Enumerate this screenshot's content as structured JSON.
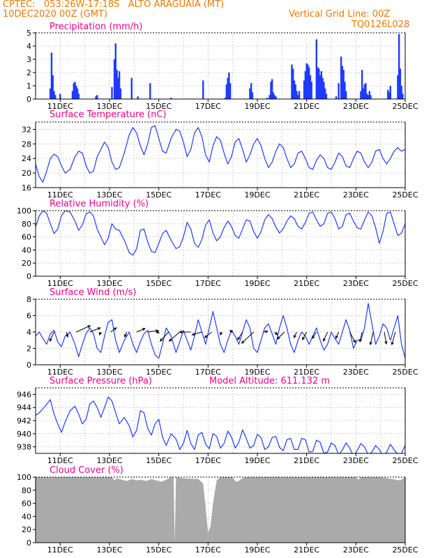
{
  "header": {
    "line1": "CPTEC:   053:26W-17:18S   ALTO ARAGUAIA (MT)",
    "line2": "10DEC2020 00Z (GMT)",
    "grid_note": "Vertical Grid Line: 00Z",
    "code": "TQ0126L028",
    "color": "#f07800"
  },
  "colors": {
    "title": "#ee0090",
    "series": "#1f3bff",
    "cloud": "#aaaaaa",
    "grid": "#999999"
  },
  "x_ticks": [
    "11DEC",
    "13DEC",
    "15DEC",
    "17DEC",
    "19DEC",
    "21DEC",
    "23DEC",
    "25DEC"
  ],
  "chart_data": [
    {
      "type": "bar",
      "title": "Precipitation (mm/h)",
      "xlim_days": [
        10.0,
        25.0
      ],
      "ylim": [
        0,
        5
      ],
      "yticks": [
        0,
        1,
        2,
        3,
        4,
        5
      ],
      "grid": true,
      "x_days": [
        10.6,
        10.65,
        10.7,
        10.75,
        10.8,
        11.0,
        11.5,
        11.55,
        11.6,
        11.65,
        11.7,
        11.75,
        12.45,
        12.5,
        13.1,
        13.2,
        13.25,
        13.3,
        13.35,
        13.4,
        13.45,
        13.9,
        14.15,
        14.65,
        15.5,
        16.8,
        17.7,
        17.75,
        17.8,
        17.85,
        17.9,
        18.7,
        18.75,
        18.8,
        19.4,
        19.5,
        19.55,
        19.6,
        19.65,
        19.7,
        19.75,
        20.4,
        20.45,
        20.5,
        20.55,
        20.6,
        20.65,
        20.7,
        20.9,
        20.95,
        21.0,
        21.05,
        21.1,
        21.15,
        21.2,
        21.4,
        21.45,
        21.5,
        21.55,
        21.6,
        21.65,
        21.7,
        21.75,
        21.8,
        22.2,
        22.3,
        22.4,
        22.45,
        22.5,
        22.55,
        22.6,
        23.2,
        23.25,
        23.3,
        23.35,
        23.4,
        23.45,
        23.5,
        23.55,
        23.6,
        24.3,
        24.35,
        24.4,
        24.7,
        24.75,
        24.8,
        24.85,
        24.9
      ],
      "values": [
        0.8,
        3.5,
        1.8,
        0.6,
        0.3,
        0.4,
        0.6,
        1.2,
        1.3,
        1.0,
        0.8,
        0.4,
        0.2,
        0.3,
        0.9,
        3.0,
        4.2,
        2.2,
        1.6,
        2.1,
        0.8,
        1.6,
        0.2,
        1.2,
        0.1,
        1.4,
        0.1,
        1.1,
        1.6,
        2.0,
        1.2,
        0.8,
        1.2,
        0.5,
        0.1,
        0.3,
        1.3,
        1.5,
        0.5,
        0.3,
        0.2,
        2.6,
        2.3,
        1.4,
        1.1,
        0.6,
        0.3,
        0.6,
        1.4,
        2.1,
        2.7,
        2.6,
        2.4,
        1.8,
        1.3,
        4.5,
        2.4,
        2.3,
        1.8,
        2.1,
        1.6,
        1.3,
        0.8,
        0.4,
        0.2,
        1.2,
        3.2,
        2.5,
        2.2,
        1.3,
        0.6,
        0.6,
        2.2,
        0.8,
        1.1,
        1.2,
        0.4,
        0.3,
        0.6,
        0.3,
        0.7,
        0.5,
        1.0,
        1.8,
        4.9,
        2.3,
        1.0,
        0.4
      ]
    },
    {
      "type": "line",
      "title": "Surface Temperature (nC)",
      "xlim_days": [
        10.0,
        25.0
      ],
      "ylim": [
        16,
        34
      ],
      "yticks": [
        16,
        20,
        24,
        28,
        32
      ],
      "grid": true,
      "x_days": [
        10.0,
        10.15,
        10.3,
        10.45,
        10.6,
        10.75,
        10.9,
        11.05,
        11.2,
        11.4,
        11.6,
        11.75,
        11.9,
        12.05,
        12.2,
        12.35,
        12.5,
        12.65,
        12.8,
        12.95,
        13.1,
        13.25,
        13.4,
        13.6,
        13.8,
        13.95,
        14.1,
        14.25,
        14.4,
        14.55,
        14.7,
        14.85,
        15.0,
        15.15,
        15.3,
        15.5,
        15.7,
        15.85,
        16.0,
        16.15,
        16.3,
        16.45,
        16.6,
        16.75,
        16.9,
        17.05,
        17.2,
        17.35,
        17.5,
        17.65,
        17.8,
        17.95,
        18.1,
        18.25,
        18.4,
        18.55,
        18.7,
        18.85,
        19.0,
        19.15,
        19.3,
        19.45,
        19.6,
        19.75,
        19.9,
        20.05,
        20.2,
        20.35,
        20.5,
        20.65,
        20.8,
        20.95,
        21.1,
        21.25,
        21.4,
        21.55,
        21.7,
        21.85,
        22.0,
        22.15,
        22.3,
        22.45,
        22.6,
        22.75,
        22.9,
        23.05,
        23.2,
        23.35,
        23.5,
        23.65,
        23.8,
        23.95,
        24.1,
        24.25,
        24.4,
        24.55,
        24.7,
        24.85,
        25.0
      ],
      "values": [
        22.5,
        19.0,
        17.5,
        20.5,
        24.0,
        25.2,
        24.5,
        22.0,
        20.0,
        21.0,
        24.5,
        26.0,
        25.5,
        22.0,
        20.0,
        20.5,
        24.5,
        26.5,
        28.5,
        27.0,
        23.0,
        21.0,
        21.5,
        25.5,
        30.5,
        32.5,
        31.0,
        27.5,
        25.0,
        28.0,
        32.5,
        33.0,
        29.5,
        26.0,
        25.5,
        29.5,
        32.0,
        31.5,
        28.5,
        24.5,
        26.5,
        31.0,
        32.5,
        30.0,
        25.0,
        23.0,
        27.5,
        30.0,
        29.0,
        25.5,
        22.5,
        24.5,
        28.5,
        29.5,
        26.5,
        23.0,
        25.0,
        28.0,
        29.5,
        27.5,
        24.0,
        21.5,
        23.0,
        26.0,
        28.0,
        27.0,
        24.0,
        21.5,
        22.5,
        25.5,
        26.0,
        24.0,
        21.5,
        21.0,
        23.5,
        25.0,
        24.0,
        21.5,
        21.0,
        23.0,
        25.5,
        24.5,
        22.0,
        21.5,
        24.0,
        26.0,
        25.5,
        23.0,
        21.5,
        23.0,
        26.0,
        26.5,
        24.0,
        22.5,
        24.0,
        26.0,
        27.0,
        26.0,
        26.5
      ]
    },
    {
      "type": "line",
      "title": "Relative Humidity (%)",
      "xlim_days": [
        10.0,
        25.0
      ],
      "ylim": [
        0,
        100
      ],
      "yticks": [
        0,
        20,
        40,
        60,
        80,
        100
      ],
      "grid": true,
      "x_days": [
        10.0,
        10.15,
        10.3,
        10.45,
        10.6,
        10.75,
        10.9,
        11.05,
        11.2,
        11.4,
        11.6,
        11.75,
        11.9,
        12.05,
        12.2,
        12.35,
        12.5,
        12.65,
        12.8,
        12.95,
        13.1,
        13.25,
        13.4,
        13.6,
        13.8,
        13.95,
        14.1,
        14.25,
        14.4,
        14.55,
        14.7,
        14.85,
        15.0,
        15.15,
        15.3,
        15.5,
        15.7,
        15.85,
        16.0,
        16.15,
        16.3,
        16.45,
        16.6,
        16.75,
        16.9,
        17.05,
        17.2,
        17.35,
        17.5,
        17.65,
        17.8,
        17.95,
        18.1,
        18.25,
        18.4,
        18.55,
        18.7,
        18.85,
        19.0,
        19.15,
        19.3,
        19.45,
        19.6,
        19.75,
        19.9,
        20.05,
        20.2,
        20.35,
        20.5,
        20.65,
        20.8,
        20.95,
        21.1,
        21.25,
        21.4,
        21.55,
        21.7,
        21.85,
        22.0,
        22.15,
        22.3,
        22.45,
        22.6,
        22.75,
        22.9,
        23.05,
        23.2,
        23.35,
        23.5,
        23.65,
        23.8,
        23.95,
        24.1,
        24.25,
        24.4,
        24.55,
        24.7,
        24.85,
        25.0
      ],
      "values": [
        75,
        92,
        100,
        96,
        80,
        65,
        72,
        92,
        100,
        98,
        84,
        70,
        78,
        95,
        98,
        92,
        72,
        60,
        48,
        58,
        80,
        72,
        70,
        55,
        36,
        32,
        42,
        70,
        72,
        52,
        38,
        36,
        50,
        65,
        70,
        55,
        42,
        45,
        60,
        82,
        72,
        50,
        44,
        56,
        78,
        86,
        66,
        54,
        60,
        74,
        84,
        76,
        62,
        58,
        72,
        86,
        84,
        68,
        58,
        68,
        86,
        94,
        88,
        75,
        66,
        72,
        84,
        92,
        88,
        76,
        72,
        82,
        96,
        98,
        86,
        76,
        80,
        96,
        98,
        88,
        72,
        76,
        94,
        96,
        84,
        74,
        72,
        86,
        98,
        92,
        74,
        50,
        68,
        96,
        98,
        80,
        62,
        66,
        80
      ]
    },
    {
      "type": "line",
      "title": "Surface Wind (m/s)",
      "xlim_days": [
        10.0,
        25.0
      ],
      "ylim": [
        0,
        8
      ],
      "yticks": [
        0,
        2,
        4,
        6,
        8
      ],
      "grid": true,
      "x_days": [
        10.0,
        10.15,
        10.3,
        10.45,
        10.6,
        10.75,
        10.9,
        11.05,
        11.2,
        11.4,
        11.6,
        11.75,
        11.9,
        12.05,
        12.2,
        12.35,
        12.5,
        12.65,
        12.8,
        12.95,
        13.1,
        13.25,
        13.4,
        13.6,
        13.8,
        13.95,
        14.1,
        14.25,
        14.4,
        14.55,
        14.7,
        14.85,
        15.0,
        15.15,
        15.3,
        15.5,
        15.7,
        15.85,
        16.0,
        16.15,
        16.3,
        16.45,
        16.6,
        16.75,
        16.9,
        17.05,
        17.2,
        17.35,
        17.5,
        17.65,
        17.8,
        17.95,
        18.1,
        18.25,
        18.4,
        18.55,
        18.7,
        18.85,
        19.0,
        19.15,
        19.3,
        19.45,
        19.6,
        19.75,
        19.9,
        20.05,
        20.2,
        20.35,
        20.5,
        20.65,
        20.8,
        20.95,
        21.1,
        21.25,
        21.4,
        21.55,
        21.7,
        21.85,
        22.0,
        22.15,
        22.3,
        22.45,
        22.6,
        22.75,
        22.9,
        23.05,
        23.2,
        23.35,
        23.5,
        23.65,
        23.8,
        23.95,
        24.1,
        24.25,
        24.4,
        24.55,
        24.7,
        24.85,
        25.0
      ],
      "values": [
        3.5,
        4.0,
        3.2,
        2.5,
        3.8,
        4.2,
        2.8,
        2.2,
        3.5,
        4.0,
        2.5,
        1.0,
        2.5,
        3.8,
        4.5,
        3.8,
        2.0,
        1.5,
        3.5,
        5.2,
        5.5,
        3.0,
        1.5,
        3.0,
        4.0,
        2.5,
        1.5,
        2.8,
        3.8,
        4.2,
        2.5,
        1.2,
        0.8,
        2.5,
        4.5,
        3.5,
        1.5,
        2.8,
        4.2,
        3.0,
        1.8,
        3.5,
        5.5,
        4.0,
        2.5,
        4.5,
        6.5,
        4.5,
        2.5,
        1.5,
        3.0,
        4.2,
        3.5,
        2.5,
        4.0,
        5.5,
        4.5,
        2.0,
        1.5,
        3.0,
        4.5,
        5.0,
        3.8,
        2.5,
        4.5,
        6.0,
        4.5,
        2.5,
        1.5,
        3.0,
        4.0,
        3.5,
        2.5,
        3.5,
        4.5,
        3.0,
        1.8,
        2.5,
        4.0,
        3.2,
        2.5,
        4.0,
        5.5,
        4.2,
        2.0,
        3.0,
        3.0,
        4.5,
        7.5,
        5.0,
        2.5,
        3.5,
        5.0,
        4.5,
        3.0,
        4.5,
        6.0,
        2.5,
        0.8
      ]
    },
    {
      "type": "line",
      "title": "Surface Pressure (hPa)",
      "annotation": "Model Altitude: 611.132  m",
      "xlim_days": [
        10.0,
        25.0
      ],
      "ylim": [
        937,
        947
      ],
      "yticks": [
        938,
        940,
        942,
        944,
        946
      ],
      "grid": true,
      "x_days": [
        10.0,
        10.15,
        10.3,
        10.45,
        10.6,
        10.75,
        10.9,
        11.05,
        11.2,
        11.4,
        11.6,
        11.75,
        11.9,
        12.05,
        12.2,
        12.35,
        12.5,
        12.65,
        12.8,
        12.95,
        13.1,
        13.25,
        13.4,
        13.6,
        13.8,
        13.95,
        14.1,
        14.25,
        14.4,
        14.55,
        14.7,
        14.85,
        15.0,
        15.15,
        15.3,
        15.5,
        15.7,
        15.85,
        16.0,
        16.15,
        16.3,
        16.45,
        16.6,
        16.75,
        16.9,
        17.05,
        17.2,
        17.35,
        17.5,
        17.65,
        17.8,
        17.95,
        18.1,
        18.25,
        18.4,
        18.55,
        18.7,
        18.85,
        19.0,
        19.15,
        19.3,
        19.45,
        19.6,
        19.75,
        19.9,
        20.05,
        20.2,
        20.35,
        20.5,
        20.65,
        20.8,
        20.95,
        21.1,
        21.25,
        21.4,
        21.55,
        21.7,
        21.85,
        22.0,
        22.15,
        22.3,
        22.45,
        22.6,
        22.75,
        22.9,
        23.05,
        23.2,
        23.35,
        23.5,
        23.65,
        23.8,
        23.95,
        24.1,
        24.25,
        24.4,
        24.55,
        24.7,
        24.85,
        25.0
      ],
      "values": [
        942.8,
        943.2,
        943.8,
        944.5,
        945.2,
        943.0,
        941.5,
        940.2,
        941.8,
        943.5,
        944.2,
        943.0,
        941.5,
        942.2,
        944.5,
        945.0,
        944.0,
        942.5,
        944.0,
        945.6,
        945.0,
        943.2,
        941.5,
        942.5,
        941.2,
        939.5,
        940.5,
        943.5,
        943.2,
        940.8,
        939.8,
        941.5,
        942.2,
        939.5,
        938.2,
        940.0,
        939.2,
        937.6,
        938.5,
        940.5,
        938.5,
        937.6,
        939.8,
        940.2,
        938.4,
        937.7,
        940.0,
        939.6,
        937.8,
        938.5,
        940.4,
        939.5,
        937.8,
        938.7,
        940.6,
        939.3,
        937.8,
        938.2,
        939.9,
        939.4,
        937.6,
        938.0,
        939.4,
        939.6,
        937.9,
        937.4,
        939.1,
        939.3,
        937.6,
        937.6,
        939.3,
        939.1,
        937.2,
        937.3,
        939.0,
        938.7,
        937.0,
        937.2,
        938.6,
        938.2,
        936.8,
        937.5,
        938.6,
        937.8,
        936.6,
        937.4,
        938.5,
        938.0,
        936.8,
        937.2,
        938.2,
        937.6,
        936.6,
        937.2,
        938.4,
        937.5,
        936.9,
        937.0,
        938.2
      ]
    },
    {
      "type": "area",
      "title": "Cloud Cover (%)",
      "xlim_days": [
        10.0,
        25.0
      ],
      "ylim": [
        0,
        100
      ],
      "yticks": [
        0,
        20,
        40,
        60,
        80,
        100
      ],
      "grid": true,
      "x_days": [
        10.0,
        12.5,
        13.1,
        13.2,
        13.3,
        13.5,
        13.7,
        13.9,
        14.1,
        14.3,
        14.5,
        14.7,
        14.9,
        15.1,
        15.3,
        15.5,
        15.6,
        15.65,
        15.7,
        16.0,
        16.6,
        16.8,
        16.9,
        17.0,
        17.1,
        17.2,
        17.35,
        17.5,
        17.8,
        18.0,
        18.1,
        18.2,
        18.3,
        18.5,
        19.0,
        20.0,
        22.0,
        23.0,
        23.1,
        23.2,
        23.3,
        24.0,
        24.8,
        25.0
      ],
      "values": [
        100,
        100,
        100,
        95,
        98,
        96,
        94,
        97,
        95,
        96,
        94,
        97,
        95,
        93,
        96,
        100,
        100,
        0,
        100,
        98,
        97,
        90,
        55,
        15,
        25,
        60,
        95,
        100,
        100,
        100,
        94,
        93,
        96,
        100,
        100,
        100,
        100,
        100,
        96,
        100,
        100,
        100,
        95,
        100
      ]
    }
  ],
  "wind_vectors": {
    "x_days": [
      10.75,
      11.25,
      11.65,
      12.2,
      12.65,
      13.05,
      13.7,
      14.1,
      14.55,
      15.0,
      15.4,
      15.85,
      16.3,
      16.75,
      17.15,
      17.55,
      18.0,
      18.4,
      18.85,
      19.25,
      19.7,
      20.1,
      20.6,
      21.0,
      21.4,
      21.85,
      22.3,
      22.75,
      23.25,
      23.7,
      24.15,
      24.6
    ],
    "u_ms": [
      -0.6,
      0.2,
      2.0,
      1.5,
      -0.2,
      0.8,
      -0.3,
      1.2,
      1.5,
      -0.3,
      -1.2,
      -1.5,
      -1.6,
      -1.4,
      -1.0,
      -0.2,
      -0.4,
      -0.7,
      -1.7,
      0.6,
      0.4,
      -1.0,
      -0.4,
      -0.6,
      -0.6,
      -0.6,
      -0.4,
      0.8,
      -0.3,
      -0.4,
      0.3,
      -0.5
    ],
    "v_ms": [
      -1.3,
      -0.7,
      0.9,
      0.6,
      -0.4,
      0.6,
      -0.7,
      0.5,
      0.2,
      -0.1,
      -1.3,
      -1.3,
      0.0,
      -0.4,
      -0.8,
      -0.4,
      0.2,
      -1.1,
      -1.6,
      0.1,
      -0.4,
      -1.0,
      -0.8,
      -1.1,
      -0.9,
      -1.3,
      -0.9,
      -1.5,
      -1.4,
      -1.8,
      -1.7,
      -1.8
    ]
  }
}
